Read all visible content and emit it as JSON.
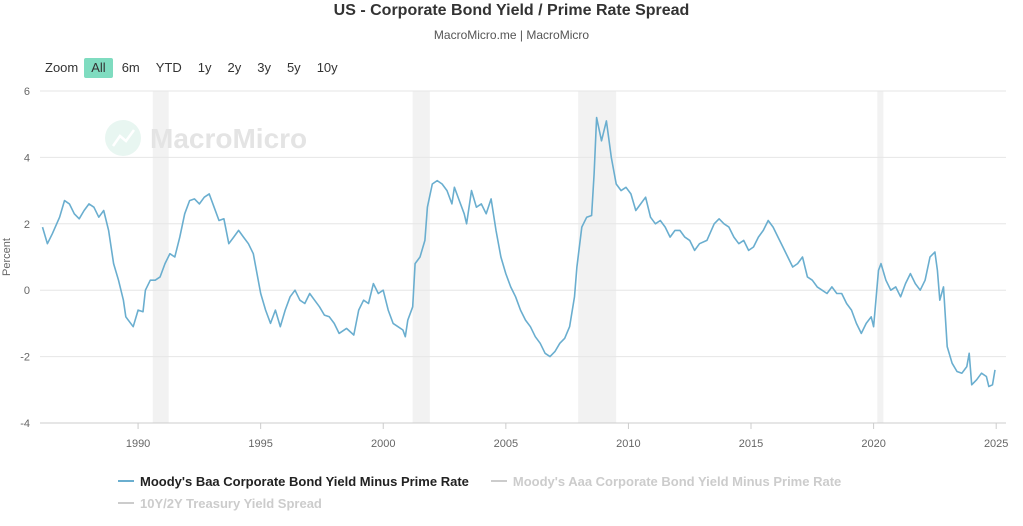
{
  "chart_data": {
    "type": "line",
    "title": "US - Corporate Bond Yield / Prime Rate Spread",
    "subtitle": "MacroMicro.me | MacroMicro",
    "ylabel": "Percent",
    "xlabel": "",
    "watermark": "MacroMicro",
    "ylim": [
      -4,
      6
    ],
    "xlim": [
      1986.0,
      2025.4
    ],
    "y_ticks": [
      -4,
      -2,
      0,
      2,
      4,
      6
    ],
    "x_ticks": [
      1990,
      1995,
      2000,
      2005,
      2010,
      2015,
      2020,
      2025
    ],
    "grid": true,
    "legend_position": "bottom",
    "recession_bands": [
      [
        1990.6,
        1991.25
      ],
      [
        2001.2,
        2001.9
      ],
      [
        2007.95,
        2009.5
      ],
      [
        2020.15,
        2020.4
      ]
    ],
    "series": [
      {
        "name": "Moody's Baa Corporate Bond Yield Minus Prime Rate",
        "visible": true,
        "color": "#6aaecf",
        "points": [
          [
            1986.1,
            1.9
          ],
          [
            1986.3,
            1.4
          ],
          [
            1986.5,
            1.7
          ],
          [
            1986.8,
            2.2
          ],
          [
            1987.0,
            2.7
          ],
          [
            1987.2,
            2.6
          ],
          [
            1987.4,
            2.3
          ],
          [
            1987.6,
            2.15
          ],
          [
            1987.8,
            2.4
          ],
          [
            1988.0,
            2.6
          ],
          [
            1988.2,
            2.5
          ],
          [
            1988.4,
            2.2
          ],
          [
            1988.6,
            2.4
          ],
          [
            1988.8,
            1.8
          ],
          [
            1989.0,
            0.8
          ],
          [
            1989.2,
            0.3
          ],
          [
            1989.4,
            -0.3
          ],
          [
            1989.5,
            -0.8
          ],
          [
            1989.8,
            -1.1
          ],
          [
            1990.0,
            -0.6
          ],
          [
            1990.2,
            -0.65
          ],
          [
            1990.3,
            0.0
          ],
          [
            1990.5,
            0.3
          ],
          [
            1990.7,
            0.3
          ],
          [
            1990.9,
            0.4
          ],
          [
            1991.1,
            0.8
          ],
          [
            1991.3,
            1.1
          ],
          [
            1991.5,
            1.0
          ],
          [
            1991.7,
            1.6
          ],
          [
            1991.9,
            2.3
          ],
          [
            1992.1,
            2.7
          ],
          [
            1992.3,
            2.75
          ],
          [
            1992.5,
            2.6
          ],
          [
            1992.7,
            2.8
          ],
          [
            1992.9,
            2.9
          ],
          [
            1993.1,
            2.5
          ],
          [
            1993.3,
            2.1
          ],
          [
            1993.5,
            2.15
          ],
          [
            1993.7,
            1.4
          ],
          [
            1993.9,
            1.6
          ],
          [
            1994.1,
            1.8
          ],
          [
            1994.3,
            1.6
          ],
          [
            1994.5,
            1.4
          ],
          [
            1994.7,
            1.1
          ],
          [
            1995.0,
            -0.1
          ],
          [
            1995.2,
            -0.6
          ],
          [
            1995.4,
            -1.0
          ],
          [
            1995.6,
            -0.6
          ],
          [
            1995.8,
            -1.1
          ],
          [
            1996.0,
            -0.6
          ],
          [
            1996.2,
            -0.2
          ],
          [
            1996.4,
            0.0
          ],
          [
            1996.6,
            -0.3
          ],
          [
            1996.8,
            -0.4
          ],
          [
            1997.0,
            -0.1
          ],
          [
            1997.2,
            -0.3
          ],
          [
            1997.4,
            -0.5
          ],
          [
            1997.6,
            -0.75
          ],
          [
            1997.8,
            -0.8
          ],
          [
            1998.0,
            -1.0
          ],
          [
            1998.2,
            -1.3
          ],
          [
            1998.5,
            -1.15
          ],
          [
            1998.8,
            -1.35
          ],
          [
            1999.0,
            -0.6
          ],
          [
            1999.2,
            -0.3
          ],
          [
            1999.4,
            -0.4
          ],
          [
            1999.6,
            0.2
          ],
          [
            1999.8,
            -0.1
          ],
          [
            2000.0,
            0.0
          ],
          [
            2000.2,
            -0.6
          ],
          [
            2000.4,
            -1.0
          ],
          [
            2000.6,
            -1.1
          ],
          [
            2000.8,
            -1.2
          ],
          [
            2000.9,
            -1.4
          ],
          [
            2001.0,
            -0.9
          ],
          [
            2001.2,
            -0.5
          ],
          [
            2001.3,
            0.8
          ],
          [
            2001.5,
            1.0
          ],
          [
            2001.7,
            1.5
          ],
          [
            2001.8,
            2.5
          ],
          [
            2002.0,
            3.2
          ],
          [
            2002.2,
            3.3
          ],
          [
            2002.4,
            3.2
          ],
          [
            2002.6,
            3.0
          ],
          [
            2002.8,
            2.6
          ],
          [
            2002.9,
            3.1
          ],
          [
            2003.1,
            2.7
          ],
          [
            2003.3,
            2.3
          ],
          [
            2003.4,
            2.0
          ],
          [
            2003.6,
            3.0
          ],
          [
            2003.8,
            2.5
          ],
          [
            2004.0,
            2.6
          ],
          [
            2004.2,
            2.3
          ],
          [
            2004.4,
            2.75
          ],
          [
            2004.6,
            1.8
          ],
          [
            2004.8,
            1.0
          ],
          [
            2005.0,
            0.5
          ],
          [
            2005.2,
            0.1
          ],
          [
            2005.4,
            -0.2
          ],
          [
            2005.6,
            -0.6
          ],
          [
            2005.8,
            -0.9
          ],
          [
            2006.0,
            -1.1
          ],
          [
            2006.2,
            -1.4
          ],
          [
            2006.4,
            -1.6
          ],
          [
            2006.6,
            -1.9
          ],
          [
            2006.8,
            -2.0
          ],
          [
            2007.0,
            -1.85
          ],
          [
            2007.2,
            -1.6
          ],
          [
            2007.4,
            -1.45
          ],
          [
            2007.6,
            -1.1
          ],
          [
            2007.8,
            -0.2
          ],
          [
            2007.9,
            0.7
          ],
          [
            2008.1,
            1.9
          ],
          [
            2008.3,
            2.2
          ],
          [
            2008.5,
            2.25
          ],
          [
            2008.6,
            3.5
          ],
          [
            2008.7,
            5.2
          ],
          [
            2008.9,
            4.5
          ],
          [
            2009.1,
            5.1
          ],
          [
            2009.3,
            4.0
          ],
          [
            2009.5,
            3.2
          ],
          [
            2009.7,
            3.0
          ],
          [
            2009.9,
            3.1
          ],
          [
            2010.1,
            2.9
          ],
          [
            2010.3,
            2.4
          ],
          [
            2010.5,
            2.6
          ],
          [
            2010.7,
            2.8
          ],
          [
            2010.9,
            2.2
          ],
          [
            2011.1,
            2.0
          ],
          [
            2011.3,
            2.1
          ],
          [
            2011.5,
            1.9
          ],
          [
            2011.7,
            1.6
          ],
          [
            2011.9,
            1.8
          ],
          [
            2012.1,
            1.8
          ],
          [
            2012.3,
            1.6
          ],
          [
            2012.5,
            1.5
          ],
          [
            2012.7,
            1.2
          ],
          [
            2012.9,
            1.4
          ],
          [
            2013.2,
            1.5
          ],
          [
            2013.5,
            2.0
          ],
          [
            2013.7,
            2.15
          ],
          [
            2013.9,
            2.0
          ],
          [
            2014.1,
            1.9
          ],
          [
            2014.3,
            1.6
          ],
          [
            2014.5,
            1.4
          ],
          [
            2014.7,
            1.5
          ],
          [
            2014.9,
            1.2
          ],
          [
            2015.1,
            1.3
          ],
          [
            2015.3,
            1.6
          ],
          [
            2015.5,
            1.8
          ],
          [
            2015.7,
            2.1
          ],
          [
            2015.9,
            1.9
          ],
          [
            2016.1,
            1.6
          ],
          [
            2016.3,
            1.3
          ],
          [
            2016.5,
            1.0
          ],
          [
            2016.7,
            0.7
          ],
          [
            2016.9,
            0.8
          ],
          [
            2017.1,
            1.0
          ],
          [
            2017.3,
            0.4
          ],
          [
            2017.5,
            0.3
          ],
          [
            2017.7,
            0.1
          ],
          [
            2017.9,
            0.0
          ],
          [
            2018.1,
            -0.1
          ],
          [
            2018.3,
            0.1
          ],
          [
            2018.5,
            -0.1
          ],
          [
            2018.7,
            -0.1
          ],
          [
            2018.9,
            -0.4
          ],
          [
            2019.1,
            -0.6
          ],
          [
            2019.3,
            -1.0
          ],
          [
            2019.5,
            -1.3
          ],
          [
            2019.7,
            -1.0
          ],
          [
            2019.9,
            -0.8
          ],
          [
            2020.0,
            -1.1
          ],
          [
            2020.2,
            0.6
          ],
          [
            2020.3,
            0.8
          ],
          [
            2020.5,
            0.3
          ],
          [
            2020.7,
            0.0
          ],
          [
            2020.9,
            0.1
          ],
          [
            2021.1,
            -0.2
          ],
          [
            2021.3,
            0.2
          ],
          [
            2021.5,
            0.5
          ],
          [
            2021.7,
            0.2
          ],
          [
            2021.9,
            0.0
          ],
          [
            2022.1,
            0.3
          ],
          [
            2022.3,
            1.0
          ],
          [
            2022.5,
            1.15
          ],
          [
            2022.6,
            0.6
          ],
          [
            2022.7,
            -0.3
          ],
          [
            2022.85,
            0.1
          ],
          [
            2023.0,
            -1.7
          ],
          [
            2023.2,
            -2.2
          ],
          [
            2023.4,
            -2.45
          ],
          [
            2023.6,
            -2.5
          ],
          [
            2023.8,
            -2.3
          ],
          [
            2023.9,
            -1.9
          ],
          [
            2024.0,
            -2.85
          ],
          [
            2024.2,
            -2.7
          ],
          [
            2024.4,
            -2.5
          ],
          [
            2024.6,
            -2.6
          ],
          [
            2024.7,
            -2.9
          ],
          [
            2024.85,
            -2.85
          ],
          [
            2024.95,
            -2.4
          ]
        ]
      },
      {
        "name": "Moody's Aaa Corporate Bond Yield Minus Prime Rate",
        "visible": false,
        "color": "#cccccc",
        "points": []
      },
      {
        "name": "10Y/2Y Treasury Yield Spread",
        "visible": false,
        "color": "#cccccc",
        "points": []
      }
    ]
  },
  "zoom": {
    "label": "Zoom",
    "buttons": [
      {
        "label": "All",
        "active": true
      },
      {
        "label": "6m",
        "active": false
      },
      {
        "label": "YTD",
        "active": false
      },
      {
        "label": "1y",
        "active": false
      },
      {
        "label": "2y",
        "active": false
      },
      {
        "label": "3y",
        "active": false
      },
      {
        "label": "5y",
        "active": false
      },
      {
        "label": "10y",
        "active": false
      }
    ]
  }
}
